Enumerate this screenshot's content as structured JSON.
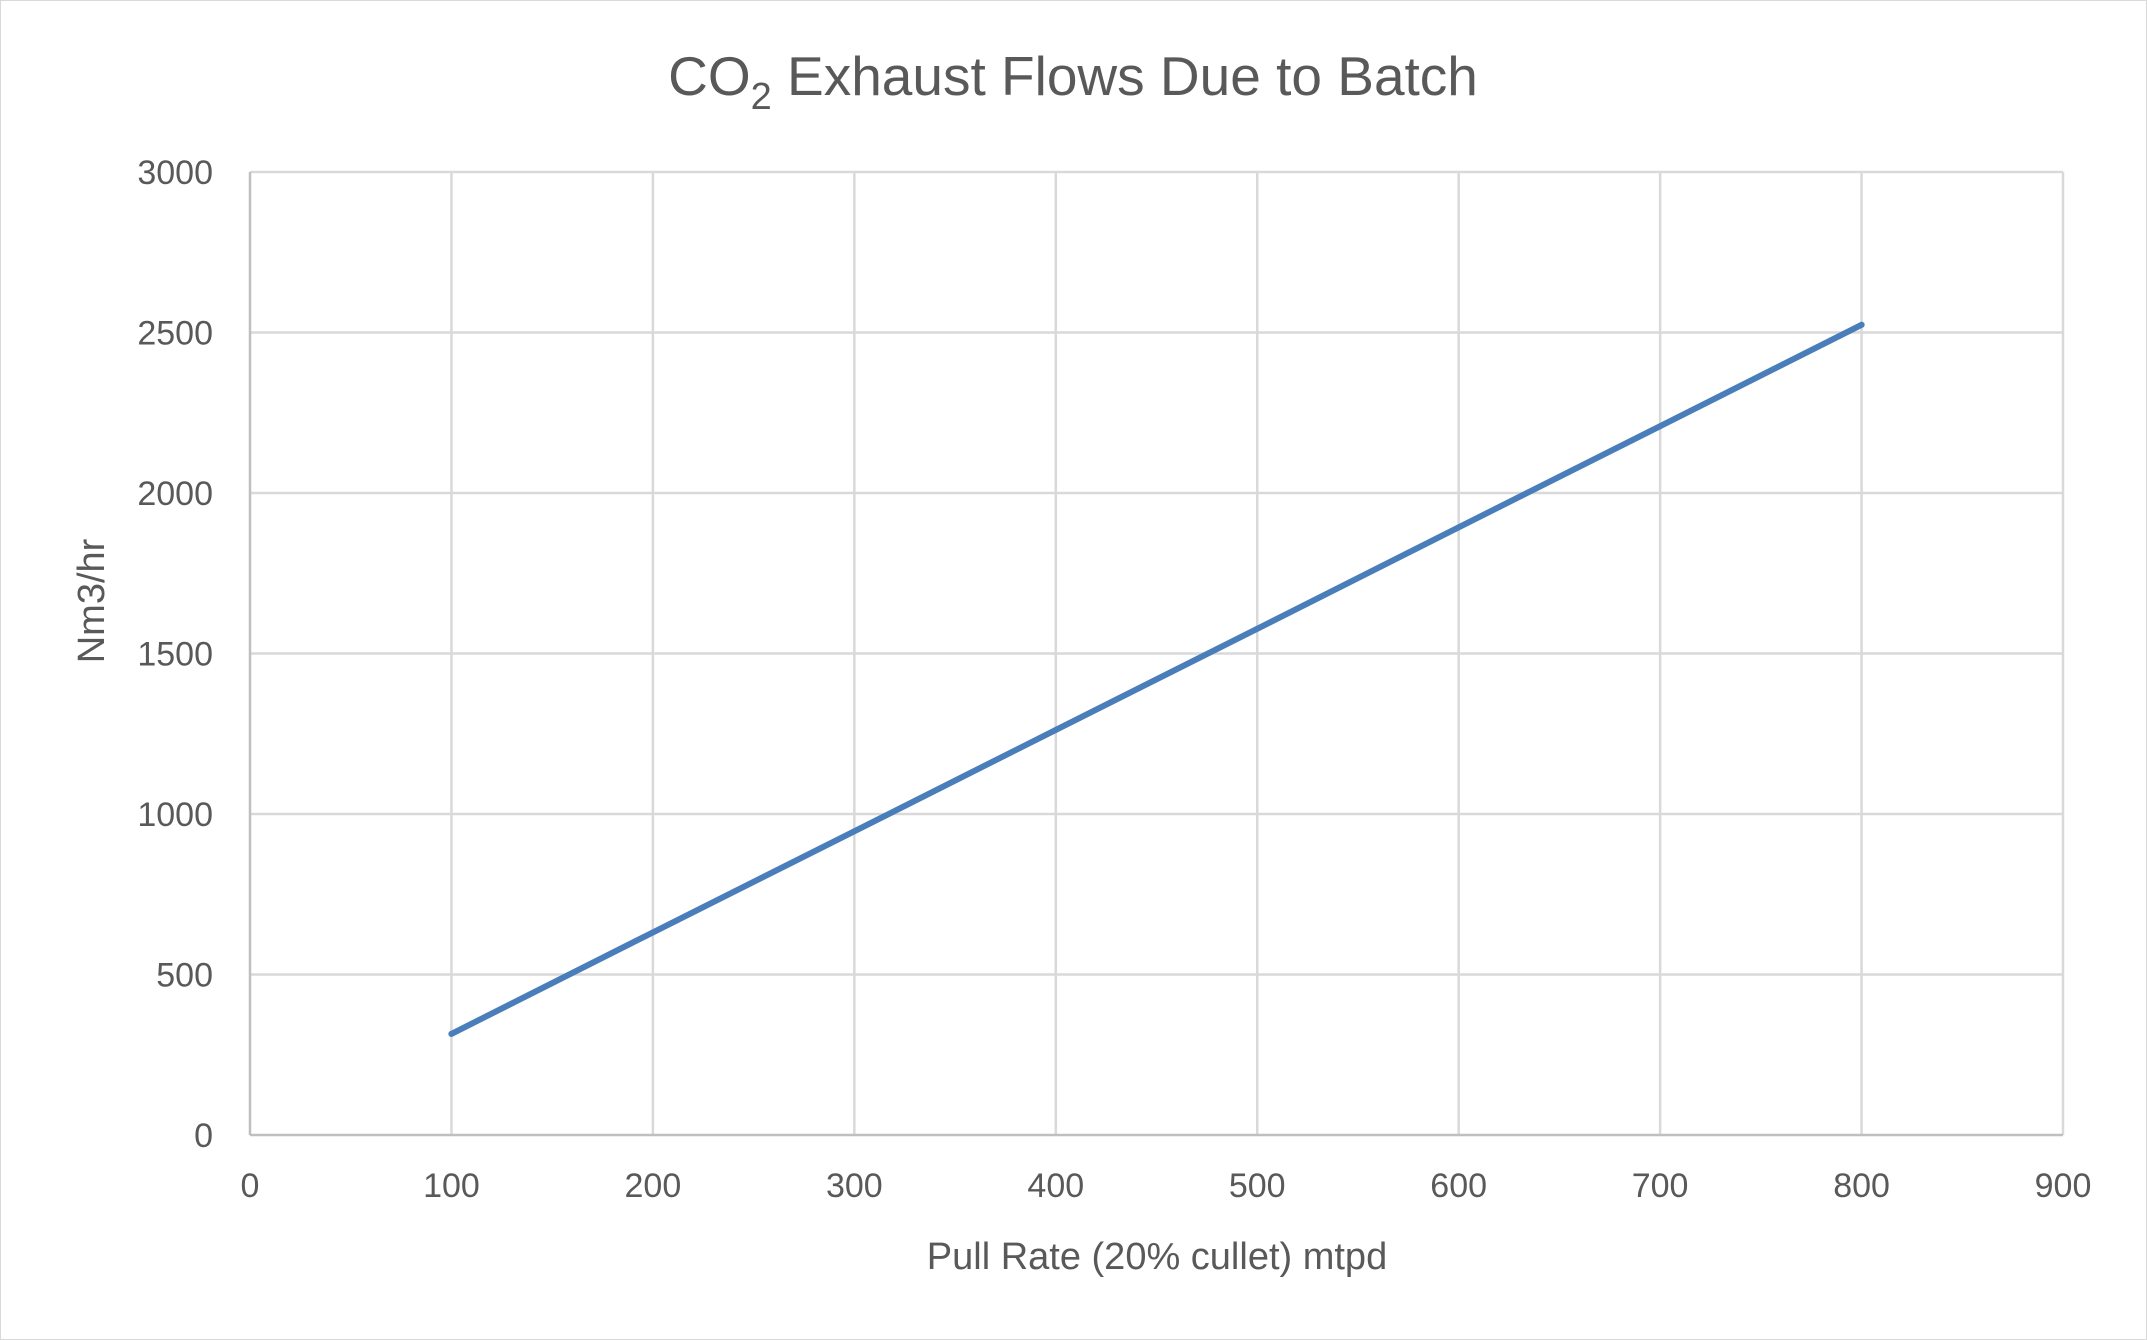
{
  "chart_data": {
    "type": "line",
    "title": "CO2 Exhaust  Flows Due to Batch",
    "title_parts": {
      "main": "CO",
      "subscript": "2",
      "rest": " Exhaust  Flows Due to Batch"
    },
    "xlabel": "Pull Rate (20% cullet) mtpd",
    "ylabel": "Nm3/hr",
    "xlim": [
      0,
      900
    ],
    "ylim": [
      0,
      3000
    ],
    "x_ticks": [
      "0",
      "100",
      "200",
      "300",
      "400",
      "500",
      "600",
      "700",
      "800",
      "900"
    ],
    "y_ticks": [
      "0",
      "500",
      "1000",
      "1500",
      "2000",
      "2500",
      "3000"
    ],
    "grid": true,
    "legend": "none",
    "series": [
      {
        "color": "#4a7ebb",
        "x": [
          100,
          200,
          300,
          400,
          500,
          600,
          700,
          800
        ],
        "y": [
          315,
          631,
          946,
          1262,
          1577,
          1893,
          2208,
          2524
        ]
      }
    ]
  }
}
